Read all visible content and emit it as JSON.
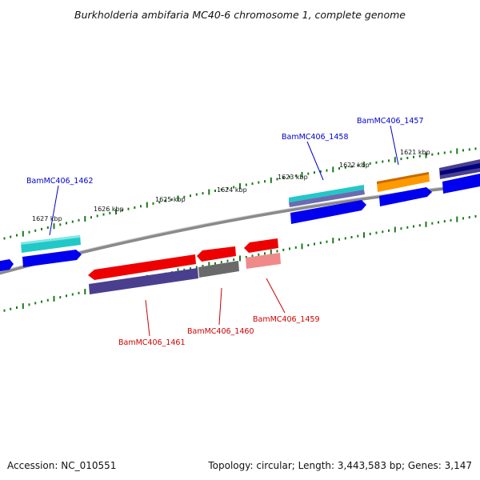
{
  "title": "Burkholderia ambifaria MC40-6 chromosome 1, complete genome",
  "footer": {
    "accession": "Accession: NC_010551",
    "summary": "Topology: circular; Length: 3,443,583 bp; Genes: 3,147"
  },
  "scale_labels": [
    "1627 kbp",
    "1626 kbp",
    "1625 kbp",
    "1624 kbp",
    "1623 kbp",
    "1622 kbp",
    "1621 kbp"
  ],
  "gene_labels": [
    {
      "text": "BamMC406_1462",
      "color": "#0000cc"
    },
    {
      "text": "BamMC406_1458",
      "color": "#0000cc"
    },
    {
      "text": "BamMC406_1457",
      "color": "#0000cc"
    },
    {
      "text": "BamMC406_1461",
      "color": "#cc0000"
    },
    {
      "text": "BamMC406_1460",
      "color": "#cc0000"
    },
    {
      "text": "BamMC406_1459",
      "color": "#cc0000"
    }
  ],
  "colors": {
    "backbone": "#8a8a8a",
    "tick": "#1a7a1a",
    "forward_cds": "#0000ee",
    "reverse_cds": "#ee0000",
    "cyan_feature": "#22c8c8",
    "orange_feature": "#ff9900",
    "purple_feature": "#4a3f8f",
    "gray_feature": "#6a6a6a",
    "pink_feature": "#f08a8a",
    "forward_label": "#0000cc",
    "reverse_label": "#cc0000"
  }
}
